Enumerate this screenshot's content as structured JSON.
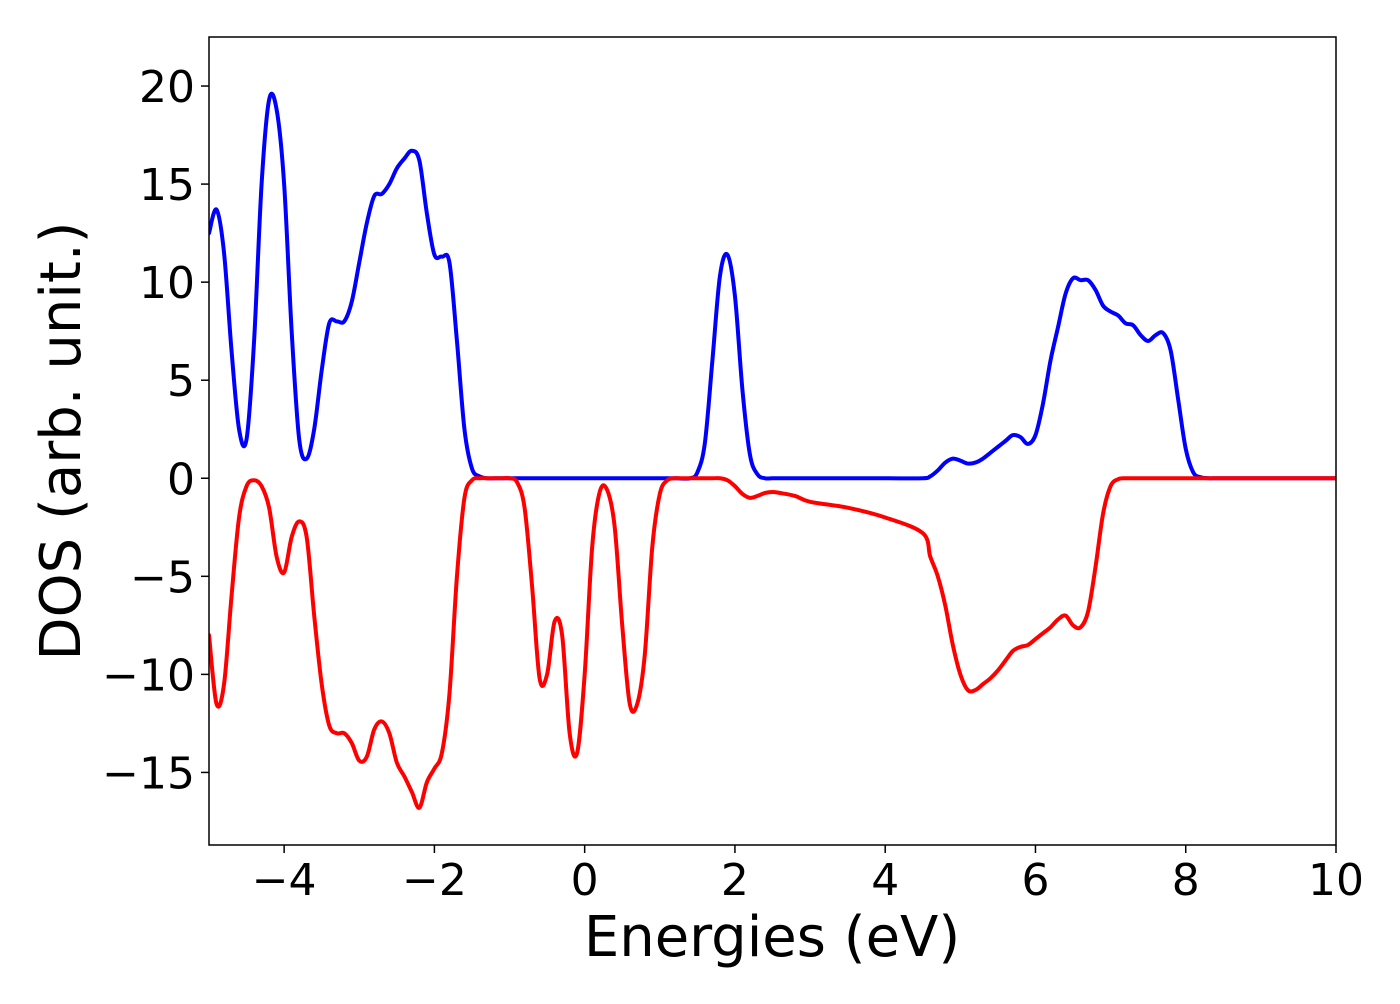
{
  "chart_data": {
    "type": "line",
    "title": "",
    "xlabel": "Energies (eV)",
    "ylabel": "DOS (arb. unit.)",
    "xlim": [
      -5,
      10
    ],
    "ylim": [
      -18.7,
      22.5
    ],
    "xticks": [
      -4,
      -2,
      0,
      2,
      4,
      6,
      8,
      10
    ],
    "xtick_labels": [
      "−4",
      "−2",
      "0",
      "2",
      "4",
      "6",
      "8",
      "10"
    ],
    "yticks": [
      -15,
      -10,
      -5,
      0,
      5,
      10,
      15,
      20
    ],
    "ytick_labels": [
      "−15",
      "−10",
      "−5",
      "0",
      "5",
      "10",
      "15",
      "20"
    ],
    "grid": false,
    "series": [
      {
        "color": "#0000ff",
        "x": [
          -5.0,
          -4.9,
          -4.8,
          -4.7,
          -4.6,
          -4.5,
          -4.4,
          -4.3,
          -4.2,
          -4.1,
          -4.0,
          -3.9,
          -3.8,
          -3.7,
          -3.6,
          -3.5,
          -3.4,
          -3.3,
          -3.2,
          -3.1,
          -3.0,
          -2.9,
          -2.8,
          -2.7,
          -2.6,
          -2.5,
          -2.4,
          -2.3,
          -2.2,
          -2.1,
          -2.0,
          -1.9,
          -1.8,
          -1.7,
          -1.6,
          -1.5,
          -1.4,
          -1.3,
          -1.2,
          -1.1,
          -1.0,
          -0.9,
          -0.8,
          -0.7,
          -0.6,
          -0.5,
          -0.4,
          -0.3,
          -0.2,
          -0.1,
          0.0,
          0.2,
          0.4,
          0.6,
          0.8,
          1.0,
          1.2,
          1.4,
          1.5,
          1.6,
          1.7,
          1.8,
          1.9,
          2.0,
          2.1,
          2.2,
          2.3,
          2.4,
          2.5,
          2.6,
          2.8,
          3.0,
          3.5,
          4.0,
          4.5,
          4.6,
          4.7,
          4.8,
          4.9,
          5.0,
          5.1,
          5.2,
          5.3,
          5.4,
          5.5,
          5.6,
          5.7,
          5.8,
          5.9,
          6.0,
          6.1,
          6.2,
          6.3,
          6.4,
          6.5,
          6.6,
          6.7,
          6.8,
          6.9,
          7.0,
          7.1,
          7.2,
          7.3,
          7.4,
          7.5,
          7.6,
          7.7,
          7.8,
          7.9,
          8.0,
          8.1,
          8.2,
          8.3,
          8.4,
          8.5,
          8.6,
          8.7,
          8.8,
          8.9,
          9.0,
          9.1,
          9.2,
          9.3,
          9.4,
          9.5,
          9.6,
          9.8,
          10.0
        ],
        "y": [
          12.5,
          13.7,
          11.5,
          6.5,
          2.5,
          2.0,
          7.0,
          15.0,
          19.3,
          18.8,
          15.0,
          7.5,
          2.0,
          1.0,
          2.5,
          5.5,
          7.9,
          8.0,
          8.0,
          9.0,
          11.0,
          13.0,
          14.4,
          14.5,
          15.0,
          15.8,
          16.3,
          16.7,
          16.2,
          13.5,
          11.4,
          11.3,
          11.0,
          7.0,
          2.5,
          0.5,
          0.1,
          0.0,
          0.0,
          0.0,
          0.0,
          0.0,
          0.0,
          0.0,
          0.0,
          0.0,
          0.0,
          0.0,
          0.0,
          0.0,
          0.0,
          0.0,
          0.0,
          0.0,
          0.0,
          0.0,
          0.0,
          0.0,
          0.3,
          1.8,
          6.0,
          10.3,
          11.4,
          9.3,
          4.5,
          1.2,
          0.2,
          0.0,
          0.0,
          0.0,
          0.0,
          0.0,
          0.0,
          0.0,
          0.0,
          0.1,
          0.4,
          0.8,
          1.0,
          0.9,
          0.75,
          0.8,
          1.0,
          1.3,
          1.6,
          1.9,
          2.2,
          2.1,
          1.75,
          2.2,
          3.8,
          6.0,
          7.7,
          9.4,
          10.2,
          10.1,
          10.1,
          9.6,
          8.8,
          8.5,
          8.3,
          7.9,
          7.8,
          7.3,
          7.0,
          7.3,
          7.4,
          6.5,
          4.0,
          1.5,
          0.3,
          0.05,
          0.0,
          0.0,
          0.0,
          0.0,
          0.0,
          0.0,
          0.0,
          0.0,
          0.0,
          0.0,
          0.0,
          0.0,
          0.0,
          0.0,
          0.0,
          0.0
        ]
      },
      {
        "color": "#ff0000",
        "x": [
          -5.0,
          -4.9,
          -4.8,
          -4.7,
          -4.6,
          -4.5,
          -4.4,
          -4.3,
          -4.2,
          -4.1,
          -4.0,
          -3.9,
          -3.8,
          -3.7,
          -3.6,
          -3.5,
          -3.4,
          -3.3,
          -3.2,
          -3.1,
          -3.0,
          -2.9,
          -2.8,
          -2.7,
          -2.6,
          -2.5,
          -2.4,
          -2.3,
          -2.2,
          -2.1,
          -2.0,
          -1.9,
          -1.8,
          -1.7,
          -1.6,
          -1.5,
          -1.4,
          -1.3,
          -1.2,
          -1.1,
          -1.0,
          -0.9,
          -0.8,
          -0.7,
          -0.6,
          -0.5,
          -0.4,
          -0.3,
          -0.2,
          -0.1,
          0.0,
          0.1,
          0.2,
          0.3,
          0.4,
          0.5,
          0.6,
          0.7,
          0.8,
          0.9,
          1.0,
          1.1,
          1.2,
          1.3,
          1.4,
          1.5,
          1.6,
          1.7,
          1.8,
          1.9,
          2.0,
          2.1,
          2.2,
          2.3,
          2.4,
          2.5,
          2.6,
          2.8,
          3.0,
          3.5,
          4.0,
          4.5,
          4.6,
          4.7,
          4.8,
          4.9,
          5.0,
          5.1,
          5.2,
          5.3,
          5.4,
          5.5,
          5.6,
          5.7,
          5.8,
          5.9,
          6.0,
          6.1,
          6.2,
          6.3,
          6.4,
          6.5,
          6.6,
          6.7,
          6.8,
          6.9,
          7.0,
          7.1,
          7.2,
          7.3,
          7.4,
          7.5,
          7.6,
          7.7,
          7.8,
          7.9,
          8.0,
          8.1,
          8.2,
          8.3,
          8.4,
          8.5,
          8.6,
          8.7,
          8.8,
          8.9,
          9.0,
          9.1,
          9.2,
          9.3,
          9.4,
          9.5,
          9.6,
          9.8,
          10.0
        ],
        "y": [
          -8.0,
          -11.5,
          -10.5,
          -6.0,
          -2.0,
          -0.4,
          -0.1,
          -0.4,
          -1.5,
          -4.0,
          -4.8,
          -3.0,
          -2.2,
          -3.0,
          -7.0,
          -10.5,
          -12.6,
          -13.0,
          -13.0,
          -13.5,
          -14.4,
          -14.2,
          -12.8,
          -12.4,
          -13.0,
          -14.5,
          -15.2,
          -16.0,
          -16.8,
          -15.5,
          -14.8,
          -14.0,
          -11.0,
          -5.0,
          -1.0,
          -0.1,
          0.0,
          0.0,
          0.0,
          0.0,
          0.0,
          -0.2,
          -1.5,
          -5.5,
          -10.2,
          -10.0,
          -7.3,
          -8.0,
          -13.0,
          -14.0,
          -10.0,
          -3.5,
          -0.7,
          -0.6,
          -2.5,
          -7.5,
          -11.5,
          -11.5,
          -9.0,
          -3.5,
          -0.8,
          -0.1,
          0.0,
          0.0,
          0.0,
          0.0,
          0.0,
          0.0,
          0.0,
          -0.1,
          -0.4,
          -0.8,
          -1.0,
          -0.9,
          -0.75,
          -0.7,
          -0.75,
          -0.9,
          -1.2,
          -1.5,
          -2.0,
          -2.8,
          -4.0,
          -5.0,
          -6.5,
          -8.5,
          -10.0,
          -10.8,
          -10.8,
          -10.5,
          -10.2,
          -9.8,
          -9.3,
          -8.8,
          -8.6,
          -8.5,
          -8.2,
          -7.9,
          -7.6,
          -7.2,
          -7.0,
          -7.5,
          -7.6,
          -6.8,
          -4.5,
          -1.8,
          -0.4,
          -0.05,
          0.0,
          0.0,
          0.0,
          0.0,
          0.0,
          0.0,
          0.0,
          0.0,
          0.0,
          0.0,
          0.0,
          0.0,
          0.0,
          0.0,
          0.0,
          0.0,
          0.0,
          0.0,
          0.0,
          0.0,
          0.0,
          0.0,
          0.0,
          0.0,
          0.0,
          0.0,
          0.0
        ]
      }
    ]
  }
}
